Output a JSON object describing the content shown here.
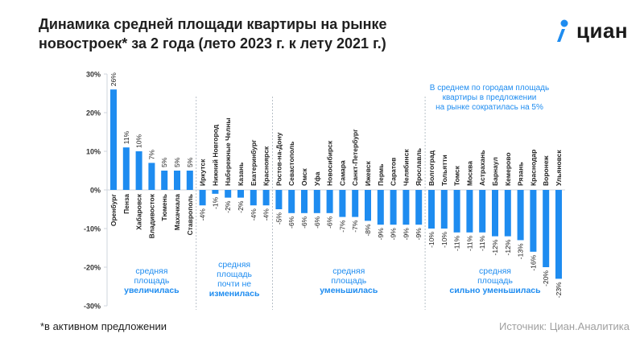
{
  "header": {
    "title_line1": "Динамика средней площади квартиры на рынке",
    "title_line2": "новостроек* за 2 года (лето 2023 г. к лету 2021 г.)"
  },
  "logo": {
    "text": "циан",
    "icon": "location-pin-icon"
  },
  "footer": {
    "footnote": "*в активном предложении",
    "source": "Источник: Циан.Аналитика"
  },
  "colors": {
    "bar": "#1e8cf0",
    "accent": "#1e8cf0",
    "axis": "#cfd6de"
  },
  "chart_data": {
    "type": "bar",
    "ylim": [
      -30,
      30
    ],
    "y_ticks": [
      30,
      20,
      10,
      0,
      -10,
      -20,
      -30
    ],
    "y_tick_labels": [
      "30%",
      "20%",
      "10%",
      "0%",
      "-10%",
      "-20%",
      "-30%"
    ],
    "categories": [
      "Оренбург",
      "Пенза",
      "Хабаровск",
      "Владивосток",
      "Тюмень",
      "Махачкала",
      "Ставрополь",
      "Иркутск",
      "Нижний Новгород",
      "Набережные Челны",
      "Казань",
      "Екатеринбург",
      "Красноярск",
      "Ростов-на-Дону",
      "Севастополь",
      "Омск",
      "Уфа",
      "Новосибирск",
      "Самара",
      "Санкт-Петербург",
      "Ижевск",
      "Пермь",
      "Саратов",
      "Челябинск",
      "Ярославль",
      "Волгоград",
      "Тольятти",
      "Томск",
      "Москва",
      "Астрахань",
      "Барнаул",
      "Кемерово",
      "Рязань",
      "Краснодар",
      "Воронеж",
      "Ульяновск"
    ],
    "values": [
      26,
      11,
      10,
      7,
      5,
      5,
      5,
      -4,
      -1,
      -2,
      -2,
      -4,
      -4,
      -5,
      -6,
      -6,
      -6,
      -6,
      -7,
      -7,
      -8,
      -9,
      -9,
      -9,
      -9,
      -10,
      -10,
      -11,
      -11,
      -11,
      -12,
      -12,
      -13,
      -16,
      -20,
      -23
    ],
    "value_labels": [
      "26%",
      "11%",
      "10%",
      "7%",
      "5%",
      "5%",
      "5%",
      "-4%",
      "-1%",
      "-2%",
      "-2%",
      "-4%",
      "-4%",
      "-5%",
      "-6%",
      "-6%",
      "-6%",
      "-6%",
      "-7%",
      "-7%",
      "-8%",
      "-9%",
      "-9%",
      "-9%",
      "-9%",
      "-10%",
      "-10%",
      "-11%",
      "-11%",
      "-11%",
      "-12%",
      "-12%",
      "-13%",
      "-16%",
      "-20%",
      "-23%"
    ],
    "groups": [
      {
        "label_lines": [
          "средняя",
          "площадь",
          "увеличилась"
        ],
        "start": 0,
        "end": 6
      },
      {
        "label_lines": [
          "средняя",
          "площадь",
          "почти не",
          "изменилась"
        ],
        "start": 7,
        "end": 12
      },
      {
        "label_lines": [
          "средняя",
          "площадь",
          "уменьшилась"
        ],
        "start": 13,
        "end": 24
      },
      {
        "label_lines": [
          "средняя",
          "площадь",
          "сильно уменьшилась"
        ],
        "start": 25,
        "end": 35
      }
    ],
    "annotation_lines": [
      "В среднем по городам площадь",
      "квартиры в предложении",
      "на рынке сократилась на 5%"
    ]
  }
}
